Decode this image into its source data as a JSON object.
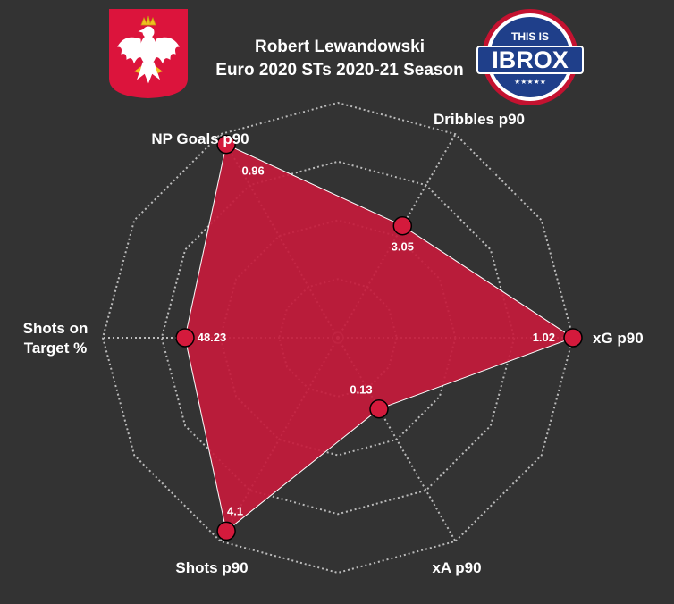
{
  "header": {
    "title_line1": "Robert Lewandowski",
    "title_line2": "Euro 2020 STs 2020-21 Season"
  },
  "logos": {
    "flag_icon": "poland-eagle-crest",
    "brand_line1": "THIS IS",
    "brand_line2": "IBROX",
    "brand_stars": "★★★★★"
  },
  "colors": {
    "background": "#333333",
    "fill": "#c41a3b",
    "marker": "#d41a3c",
    "grid": "#bbbbbb",
    "badge_blue": "#1f3f8a",
    "badge_red": "#c41230",
    "flag_red": "#dc143c"
  },
  "chart_data": {
    "type": "radar",
    "title": "Robert Lewandowski — Euro 2020 STs 2020-21 Season",
    "axes": [
      {
        "name": "NP Goals p90",
        "value": 0.96,
        "label": "0.96",
        "relative": 0.95
      },
      {
        "name": "Dribbles p90",
        "value": 3.05,
        "label": "3.05",
        "relative": 0.55
      },
      {
        "name": "xG p90",
        "value": 1.02,
        "label": "1.02",
        "relative": 1.0
      },
      {
        "name": "xA p90",
        "value": 0.13,
        "label": "0.13",
        "relative": 0.35
      },
      {
        "name": "Shots p90",
        "value": 4.1,
        "label": "4.1",
        "relative": 0.95
      },
      {
        "name": "Shots on Target %",
        "value": 48.23,
        "label": "48.23",
        "relative": 0.65
      }
    ],
    "axis_label_lines": [
      [
        "NP Goals p90"
      ],
      [
        "Dribbles p90"
      ],
      [
        "xG p90"
      ],
      [
        "xA p90"
      ],
      [
        "Shots p90"
      ],
      [
        "Shots on",
        "Target %"
      ]
    ],
    "grid_rings": 4
  }
}
